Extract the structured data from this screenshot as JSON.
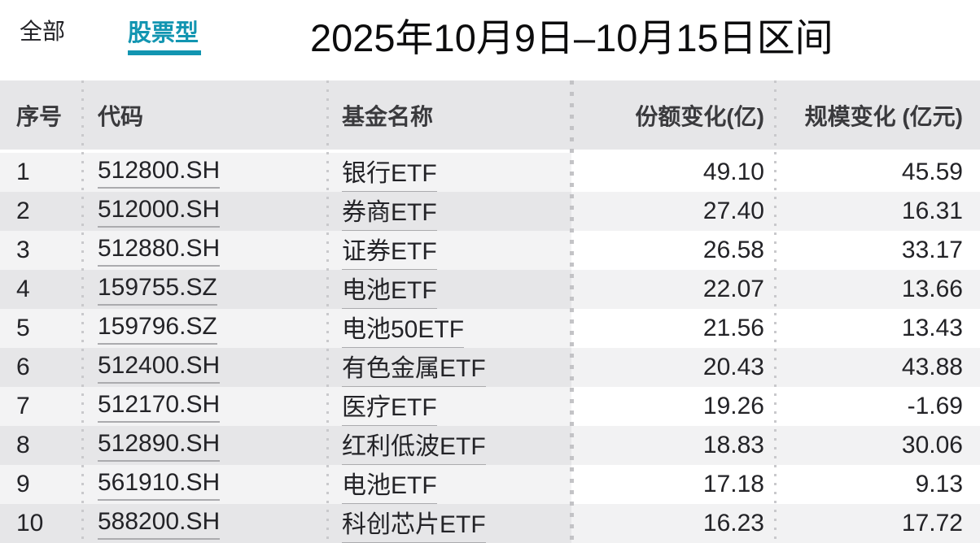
{
  "tabs": {
    "all": "全部",
    "stock": "股票型"
  },
  "title": "2025年10月9日–10月15日区间",
  "colors": {
    "accent_teal": "#1295b1",
    "header_bg": "#e6e6e8",
    "row_alt_bg": "#f3f3f4",
    "right_panel_alt_bg": "#f2f2f3"
  },
  "table": {
    "headers": {
      "index": "序号",
      "code": "代码",
      "name": "基金名称",
      "share_change": "份额变化(亿)",
      "scale_change": "规模变化 (亿元)"
    },
    "rows": [
      {
        "index": "1",
        "code": "512800.SH",
        "name": "银行ETF",
        "share_change": "49.10",
        "scale_change": "45.59"
      },
      {
        "index": "2",
        "code": "512000.SH",
        "name": "券商ETF",
        "share_change": "27.40",
        "scale_change": "16.31"
      },
      {
        "index": "3",
        "code": "512880.SH",
        "name": "证券ETF",
        "share_change": "26.58",
        "scale_change": "33.17"
      },
      {
        "index": "4",
        "code": "159755.SZ",
        "name": "电池ETF",
        "share_change": "22.07",
        "scale_change": "13.66"
      },
      {
        "index": "5",
        "code": "159796.SZ",
        "name": "电池50ETF",
        "share_change": "21.56",
        "scale_change": "13.43"
      },
      {
        "index": "6",
        "code": "512400.SH",
        "name": "有色金属ETF",
        "share_change": "20.43",
        "scale_change": "43.88"
      },
      {
        "index": "7",
        "code": "512170.SH",
        "name": "医疗ETF",
        "share_change": "19.26",
        "scale_change": "-1.69"
      },
      {
        "index": "8",
        "code": "512890.SH",
        "name": "红利低波ETF",
        "share_change": "18.83",
        "scale_change": "30.06"
      },
      {
        "index": "9",
        "code": "561910.SH",
        "name": "电池ETF",
        "share_change": "17.18",
        "scale_change": "9.13"
      },
      {
        "index": "10",
        "code": "588200.SH",
        "name": "科创芯片ETF",
        "share_change": "16.23",
        "scale_change": "17.72"
      }
    ]
  }
}
